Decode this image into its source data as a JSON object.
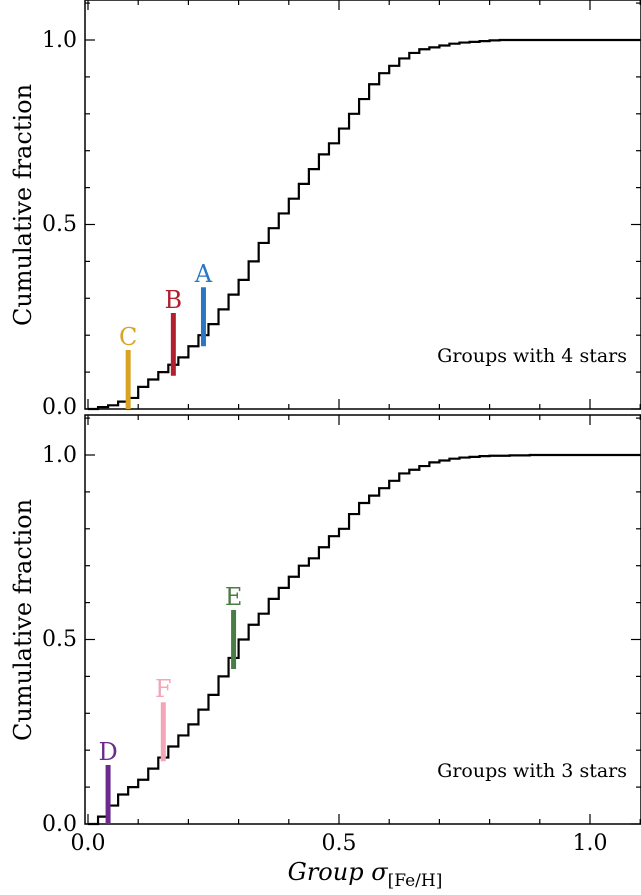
{
  "chart_data": [
    {
      "type": "step",
      "panel": "top",
      "ylabel": "Cumulative fraction",
      "xlim": [
        0.0,
        1.1
      ],
      "ylim": [
        0.0,
        1.1
      ],
      "xticks": [
        "0.0",
        "0.5",
        "1.0"
      ],
      "yticks": [
        "0.0",
        "0.5",
        "1.0"
      ],
      "annotation": "Groups with 4 stars",
      "cdf": {
        "x": [
          0.0,
          0.02,
          0.04,
          0.06,
          0.08,
          0.1,
          0.12,
          0.14,
          0.16,
          0.18,
          0.2,
          0.22,
          0.24,
          0.26,
          0.28,
          0.3,
          0.32,
          0.34,
          0.36,
          0.38,
          0.4,
          0.42,
          0.44,
          0.46,
          0.48,
          0.5,
          0.52,
          0.54,
          0.56,
          0.58,
          0.6,
          0.62,
          0.64,
          0.66,
          0.68,
          0.7,
          0.72,
          0.74,
          0.76,
          0.78,
          0.8,
          0.82,
          1.1
        ],
        "y": [
          0.0,
          0.005,
          0.01,
          0.02,
          0.03,
          0.06,
          0.08,
          0.1,
          0.12,
          0.14,
          0.17,
          0.2,
          0.23,
          0.27,
          0.31,
          0.35,
          0.4,
          0.45,
          0.49,
          0.53,
          0.57,
          0.61,
          0.65,
          0.69,
          0.72,
          0.76,
          0.8,
          0.84,
          0.88,
          0.91,
          0.93,
          0.95,
          0.965,
          0.975,
          0.98,
          0.985,
          0.99,
          0.993,
          0.995,
          0.997,
          0.999,
          1.0,
          1.0
        ]
      },
      "markers": [
        {
          "label": "A",
          "x": 0.23,
          "y0": 0.17,
          "y1": 0.33,
          "color": "#2a76c4"
        },
        {
          "label": "B",
          "x": 0.17,
          "y0": 0.09,
          "y1": 0.26,
          "color": "#b0202e"
        },
        {
          "label": "C",
          "x": 0.08,
          "y0": 0.0,
          "y1": 0.16,
          "color": "#d9a324"
        }
      ]
    },
    {
      "type": "step",
      "panel": "bottom",
      "ylabel": "Cumulative fraction",
      "xlabel": "Group σ",
      "xlabel_sub": "[Fe/H]",
      "xlim": [
        0.0,
        1.1
      ],
      "ylim": [
        0.0,
        1.1
      ],
      "xticks": [
        "0.0",
        "0.5",
        "1.0"
      ],
      "yticks": [
        "0.0",
        "0.5",
        "1.0"
      ],
      "annotation": "Groups with 3 stars",
      "cdf": {
        "x": [
          0.0,
          0.02,
          0.04,
          0.06,
          0.08,
          0.1,
          0.12,
          0.14,
          0.16,
          0.18,
          0.2,
          0.22,
          0.24,
          0.26,
          0.28,
          0.3,
          0.32,
          0.34,
          0.36,
          0.38,
          0.4,
          0.42,
          0.44,
          0.46,
          0.48,
          0.5,
          0.52,
          0.54,
          0.56,
          0.58,
          0.6,
          0.62,
          0.64,
          0.66,
          0.68,
          0.7,
          0.72,
          0.74,
          0.76,
          0.78,
          0.8,
          0.84,
          0.88,
          0.92,
          0.96,
          1.1
        ],
        "y": [
          0.0,
          0.02,
          0.05,
          0.08,
          0.1,
          0.12,
          0.15,
          0.18,
          0.21,
          0.24,
          0.27,
          0.31,
          0.35,
          0.4,
          0.45,
          0.5,
          0.54,
          0.57,
          0.61,
          0.64,
          0.67,
          0.7,
          0.72,
          0.75,
          0.78,
          0.8,
          0.84,
          0.87,
          0.89,
          0.91,
          0.93,
          0.95,
          0.96,
          0.97,
          0.98,
          0.985,
          0.99,
          0.993,
          0.995,
          0.997,
          0.998,
          0.999,
          1.0,
          1.0,
          1.0,
          1.0
        ]
      },
      "markers": [
        {
          "label": "D",
          "x": 0.04,
          "y0": 0.0,
          "y1": 0.16,
          "color": "#6b2a8c"
        },
        {
          "label": "E",
          "x": 0.29,
          "y0": 0.42,
          "y1": 0.58,
          "color": "#4a7d45"
        },
        {
          "label": "F",
          "x": 0.15,
          "y0": 0.17,
          "y1": 0.33,
          "color": "#f4a6b6"
        }
      ]
    }
  ]
}
